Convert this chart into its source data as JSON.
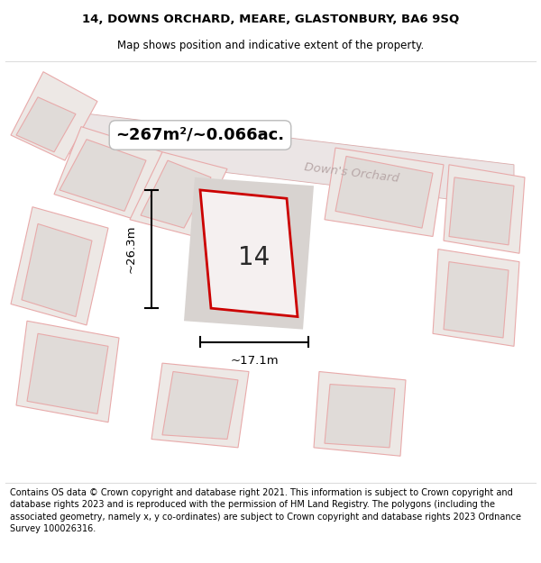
{
  "title_line1": "14, DOWNS ORCHARD, MEARE, GLASTONBURY, BA6 9SQ",
  "title_line2": "Map shows position and indicative extent of the property.",
  "footer_text": "Contains OS data © Crown copyright and database right 2021. This information is subject to Crown copyright and database rights 2023 and is reproduced with the permission of HM Land Registry. The polygons (including the associated geometry, namely x, y co-ordinates) are subject to Crown copyright and database rights 2023 Ordnance Survey 100026316.",
  "area_label": "~267m²/~0.066ac.",
  "street_label": "Down's Orchard",
  "property_number": "14",
  "width_label": "~17.1m",
  "height_label": "~26.3m",
  "map_bg": "#f2eded",
  "plot_fill": "#f5f0f0",
  "plot_edge": "#cc0000",
  "bldg_fill": "#e0dbd8",
  "bldg_edge": "#e8aaaa",
  "parcel_fill": "#ede8e5",
  "parcel_edge": "#e8aaaa",
  "road_fill": "#ebe5e5",
  "road_edge": "#daaaaa"
}
